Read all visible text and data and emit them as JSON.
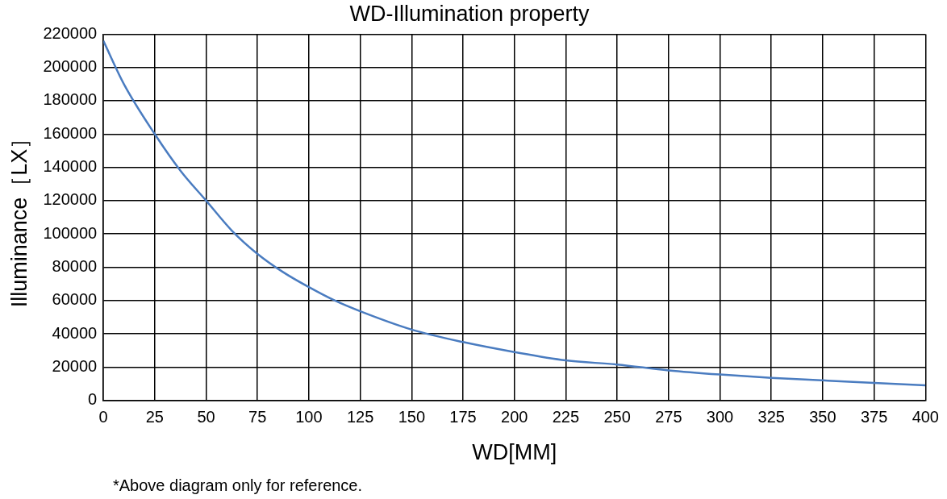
{
  "chart_data": {
    "type": "line",
    "title": "WD-Illumination property",
    "xlabel": "WD[MM]",
    "ylabel": "Illuminance［LX］",
    "x": [
      0,
      10,
      25,
      37.5,
      50,
      62.5,
      75,
      87.5,
      100,
      112.5,
      125,
      150,
      175,
      200,
      225,
      250,
      275,
      300,
      325,
      350,
      375,
      400
    ],
    "series": [
      {
        "color": "#4a7cc0",
        "values": [
          216000,
          190000,
          160000,
          138000,
          120000,
          102000,
          88000,
          77000,
          68000,
          60000,
          53500,
          42500,
          35000,
          29000,
          24000,
          21500,
          18000,
          15500,
          13500,
          12000,
          10500,
          9000
        ]
      }
    ],
    "xlim": [
      0,
      400
    ],
    "xticks": [
      0,
      25,
      50,
      75,
      100,
      125,
      150,
      175,
      200,
      225,
      250,
      275,
      300,
      325,
      350,
      375,
      400
    ],
    "ylim": [
      0,
      220000
    ],
    "yticks": [
      0,
      20000,
      40000,
      60000,
      80000,
      100000,
      120000,
      140000,
      160000,
      180000,
      200000,
      220000
    ],
    "grid": true,
    "legend": false,
    "marker": "none",
    "line_style": "solid",
    "annotations": [
      "*Above diagram only for reference."
    ]
  }
}
